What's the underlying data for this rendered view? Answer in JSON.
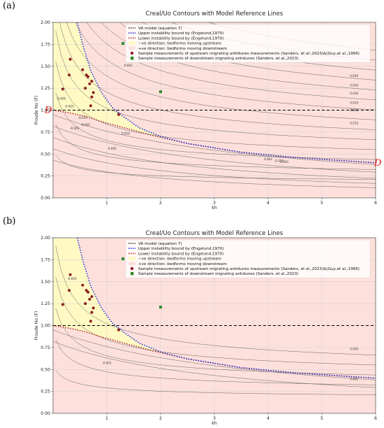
{
  "chart_data": [
    {
      "panel_label": "(a)",
      "type": "line",
      "title": "Creal/Uo Contours with Model Reference Lines",
      "xlabel": "kh",
      "ylabel": "Froude No (F)",
      "xlim": [
        0,
        6
      ],
      "ylim": [
        0,
        2.0
      ],
      "x_ticks": [
        "1",
        "2",
        "3",
        "4",
        "5",
        "6"
      ],
      "y_ticks": [
        "0.00",
        "0.25",
        "0.50",
        "0.75",
        "1.00",
        "1.25",
        "1.50",
        "1.75",
        "2.00"
      ],
      "grid": true,
      "legend_position": "top-right",
      "legend": [
        "VA model (equation 7)",
        "Upper instability bound by (Engelund,1970)",
        "Lower instability bound by (Engelund,1970)",
        "−ve direction: bedforms moving upstream",
        "+ve direction: bedforms moving downstream",
        "Sample measurements of upstream migrating antidunes measurements (Sanders, et al.,2023)&(Guy,et al.,1966)",
        "Sample measurements of downstream migrating antidunes (Sanders, et al.,2023)"
      ],
      "contour_labels_visible": [
        "0.040",
        "0.035",
        "0.030",
        "0.025",
        "0.020",
        "0.015",
        "0.010",
        "0.005",
        "0.001",
        "-0.005",
        "-0.010",
        "-0.015",
        "-0.020",
        "-0.025",
        "0.002",
        "0.003",
        "-0.001"
      ],
      "series": {
        "va_model": {
          "name": "VA model (equation 7)",
          "y_constant": 1.0
        },
        "upper_bound": {
          "name": "Upper instability bound by (Engelund,1970)",
          "x": [
            0.45,
            0.55,
            0.7,
            0.9,
            1.1,
            1.3,
            1.6,
            2.0,
            2.5,
            3.0,
            3.5,
            4.0,
            4.5,
            5.0,
            5.5,
            6.0
          ],
          "y": [
            2.0,
            1.75,
            1.45,
            1.2,
            1.03,
            0.93,
            0.8,
            0.7,
            0.62,
            0.57,
            0.52,
            0.49,
            0.46,
            0.44,
            0.42,
            0.4
          ]
        },
        "lower_bound": {
          "name": "Lower instability bound by (Engelund,1970)",
          "x": [
            0.0,
            0.3,
            0.6,
            0.9,
            1.2,
            1.5,
            1.8,
            2.0,
            2.5,
            3.0,
            3.5,
            4.0,
            4.5,
            5.0,
            5.5,
            6.0
          ],
          "y": [
            1.0,
            0.97,
            0.93,
            0.87,
            0.82,
            0.77,
            0.72,
            0.69,
            0.62,
            0.57,
            0.52,
            0.49,
            0.46,
            0.44,
            0.42,
            0.4
          ]
        },
        "upstream_measurements": {
          "name": "Sample measurements of upstream migrating antidunes measurements (Sanders, et al.,2023)&(Guy,et al.,1966)",
          "points": [
            [
              0.18,
              1.24
            ],
            [
              0.32,
              1.58
            ],
            [
              0.3,
              1.4
            ],
            [
              0.55,
              1.46
            ],
            [
              0.6,
              1.25
            ],
            [
              0.62,
              1.4
            ],
            [
              0.65,
              1.38
            ],
            [
              0.68,
              1.3
            ],
            [
              0.72,
              1.33
            ],
            [
              0.75,
              1.2
            ],
            [
              0.72,
              1.15
            ],
            [
              0.7,
              1.05
            ],
            [
              1.22,
              0.95
            ]
          ]
        },
        "downstream_measurements": {
          "name": "Sample measurements of downstream migrating antidunes (Sanders, et al.,2023)",
          "points": [
            [
              1.3,
              1.76
            ],
            [
              2.0,
              1.21
            ]
          ]
        }
      },
      "annotations": [
        "D",
        "D"
      ]
    },
    {
      "panel_label": "(b)",
      "type": "line",
      "title": "Creal/Uo Contours with Model Reference Lines",
      "xlabel": "kh",
      "ylabel": "Froude No (F)",
      "xlim": [
        0,
        6
      ],
      "ylim": [
        0,
        2.0
      ],
      "x_ticks": [
        "1",
        "2",
        "3",
        "4",
        "5",
        "6"
      ],
      "y_ticks": [
        "0.00",
        "0.25",
        "0.50",
        "0.75",
        "1.00",
        "1.25",
        "1.50",
        "1.75",
        "2.00"
      ],
      "grid": true,
      "legend_position": "top-right",
      "legend": [
        "VA model (equation 7)",
        "Upper instability bound by (Engelund,1970)",
        "Lower instability bound by (Engelund,1970)",
        "−ve direction: bedforms moving upstream",
        "+ve direction: bedforms moving downstream",
        "Sample measurements of upstream migrating antidunes measurements (Sanders, et al.,2023)&(Guy,et al.,1966)",
        "Sample measurements of downstream migrating antidunes (Sanders, et al.,2023)"
      ],
      "contour_labels_visible": [
        "0.005",
        "-0.005",
        "0.001",
        "-0.001"
      ],
      "series": {
        "va_model": {
          "name": "VA model (equation 7)",
          "y_constant": 1.0
        },
        "upper_bound": {
          "name": "Upper instability bound by (Engelund,1970)",
          "x": [
            0.45,
            0.55,
            0.7,
            0.9,
            1.1,
            1.3,
            1.6,
            2.0,
            2.5,
            3.0,
            3.5,
            4.0,
            4.5,
            5.0,
            5.5,
            6.0
          ],
          "y": [
            2.0,
            1.75,
            1.45,
            1.2,
            1.03,
            0.93,
            0.8,
            0.7,
            0.62,
            0.57,
            0.52,
            0.49,
            0.46,
            0.44,
            0.42,
            0.4
          ]
        },
        "lower_bound": {
          "name": "Lower instability bound by (Engelund,1970)",
          "x": [
            0.0,
            0.3,
            0.6,
            0.9,
            1.2,
            1.5,
            1.8,
            2.0,
            2.5,
            3.0,
            3.5,
            4.0,
            4.5,
            5.0,
            5.5,
            6.0
          ],
          "y": [
            1.0,
            0.97,
            0.93,
            0.87,
            0.82,
            0.77,
            0.72,
            0.69,
            0.62,
            0.57,
            0.52,
            0.49,
            0.46,
            0.44,
            0.42,
            0.4
          ]
        },
        "upstream_measurements": {
          "name": "Sample measurements of upstream migrating antidunes measurements (Sanders, et al.,2023)&(Guy,et al.,1966)",
          "points": [
            [
              0.18,
              1.24
            ],
            [
              0.32,
              1.58
            ],
            [
              0.3,
              1.4
            ],
            [
              0.55,
              1.46
            ],
            [
              0.6,
              1.25
            ],
            [
              0.62,
              1.4
            ],
            [
              0.65,
              1.38
            ],
            [
              0.68,
              1.3
            ],
            [
              0.72,
              1.33
            ],
            [
              0.75,
              1.2
            ],
            [
              0.72,
              1.15
            ],
            [
              0.7,
              1.05
            ],
            [
              1.22,
              0.95
            ]
          ]
        },
        "downstream_measurements": {
          "name": "Sample measurements of downstream migrating antidunes (Sanders, et al.,2023)",
          "points": [
            [
              1.3,
              1.76
            ],
            [
              2.0,
              1.21
            ]
          ]
        }
      },
      "annotations": []
    }
  ],
  "colors": {
    "negative_region": "#fff9c4",
    "positive_region": "#fde0dc",
    "va_model": "#000000",
    "upper_bound": "#1f2fd6",
    "lower_bound": "#b0302a",
    "upstream_marker": "#8b1e1e",
    "downstream_marker": "#2a8a2a",
    "contour": "#555555",
    "annotation": "#dd1111"
  }
}
